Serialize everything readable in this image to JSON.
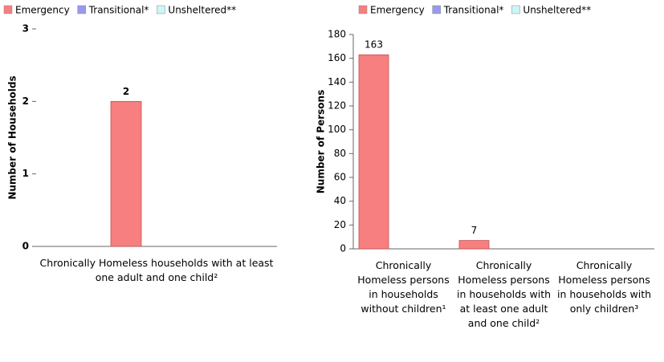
{
  "chart_data": [
    {
      "type": "bar",
      "categories": [
        "Chronically Homeless households with at least one adult and one child²"
      ],
      "series": [
        {
          "name": "Emergency",
          "color": "#f87f7f",
          "values": [
            2
          ]
        },
        {
          "name": "Transitional*",
          "color": "#9999ee",
          "values": [
            0
          ]
        },
        {
          "name": "Unsheltered**",
          "color": "#ccf5f5",
          "values": [
            0
          ]
        }
      ],
      "y_label": "Number of Households",
      "ylim": [
        0,
        3
      ],
      "yticks": [
        0,
        1,
        2,
        3
      ]
    },
    {
      "type": "bar",
      "categories": [
        "Chronically Homeless persons in households without children¹",
        "Chronically Homeless persons in households with at least one adult and one child²",
        "Chronically Homeless persons in households with only children³"
      ],
      "series": [
        {
          "name": "Emergency",
          "color": "#f87f7f",
          "values": [
            163,
            7,
            0
          ]
        },
        {
          "name": "Transitional*",
          "color": "#9999ee",
          "values": [
            0,
            0,
            0
          ]
        },
        {
          "name": "Unsheltered**",
          "color": "#ccf5f5",
          "values": [
            0,
            0,
            0
          ]
        }
      ],
      "y_label": "Number of Persons",
      "ylim": [
        0,
        180
      ],
      "yticks": [
        0,
        20,
        40,
        60,
        80,
        100,
        120,
        140,
        160,
        180
      ]
    }
  ]
}
